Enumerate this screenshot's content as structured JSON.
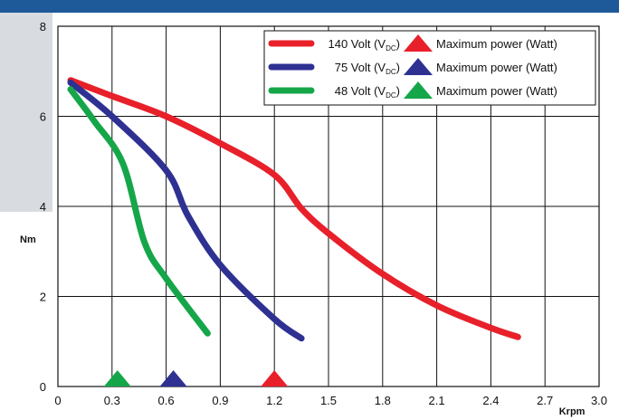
{
  "chart_data": {
    "type": "line",
    "title": "",
    "xlabel": "Krpm",
    "ylabel": "Nm",
    "xlim": [
      0,
      3.0
    ],
    "ylim": [
      0,
      8
    ],
    "x_ticks": [
      "0",
      "0.3",
      "0.6",
      "0.9",
      "1.2",
      "1.5",
      "1.8",
      "2.1",
      "2.4",
      "2.7",
      "3.0"
    ],
    "y_ticks": [
      "0",
      "2",
      "4",
      "6",
      "8"
    ],
    "grid": true,
    "legend_position": "top-right",
    "series": [
      {
        "name": "140 Volt (VDC)",
        "legend_main": "140 Volt (V",
        "legend_sub": "DC",
        "legend_close": ")",
        "color": "#e8202a",
        "x": [
          0.07,
          0.3,
          0.6,
          0.9,
          1.2,
          1.35,
          1.5,
          1.8,
          2.1,
          2.4,
          2.55
        ],
        "y": [
          6.8,
          6.45,
          6.0,
          5.4,
          4.7,
          3.95,
          3.4,
          2.5,
          1.8,
          1.3,
          1.1
        ],
        "max_power_x": 1.2,
        "max_power_label": "Maximum power (Watt)"
      },
      {
        "name": "75 Volt (VDC)",
        "legend_main": "75 Volt (V",
        "legend_sub": "DC",
        "legend_close": ")",
        "color": "#2e3192",
        "x": [
          0.07,
          0.3,
          0.6,
          0.72,
          0.9,
          1.2,
          1.35
        ],
        "y": [
          6.75,
          6.0,
          4.8,
          3.8,
          2.7,
          1.5,
          1.07
        ],
        "max_power_x": 0.64,
        "max_power_label": "Maximum power (Watt)"
      },
      {
        "name": "48 Volt (VDC)",
        "legend_main": "48 Volt (V",
        "legend_sub": "DC",
        "legend_close": ")",
        "color": "#16a64a",
        "x": [
          0.07,
          0.2,
          0.36,
          0.48,
          0.6,
          0.83
        ],
        "y": [
          6.6,
          5.9,
          4.95,
          3.2,
          2.4,
          1.18
        ],
        "max_power_x": 0.33,
        "max_power_label": "Maximum power (Watt)"
      }
    ]
  }
}
